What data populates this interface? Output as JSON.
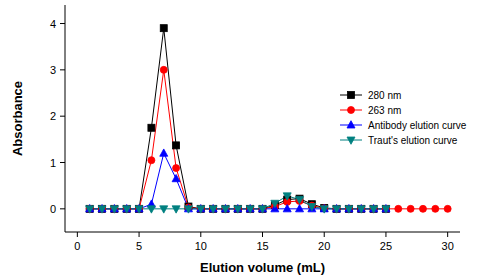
{
  "chart_data": {
    "type": "line",
    "x_label": "Elution volume (mL)",
    "y_label": "Absorbance",
    "x": [
      1,
      2,
      3,
      4,
      5,
      6,
      7,
      8,
      9,
      10,
      11,
      12,
      13,
      14,
      15,
      16,
      17,
      18,
      19,
      20,
      21,
      22,
      23,
      24,
      25,
      26,
      27,
      28,
      29,
      30
    ],
    "series": [
      {
        "name": "280 nm",
        "color": "#000000",
        "marker": "square",
        "values": [
          0,
          0,
          0,
          0,
          0,
          1.75,
          3.9,
          1.37,
          0.05,
          0,
          0,
          0,
          0,
          0,
          0,
          0.08,
          0.2,
          0.22,
          0.1,
          0.02,
          0,
          0,
          0,
          0,
          0,
          null,
          null,
          null,
          null,
          null
        ]
      },
      {
        "name": "263 nm",
        "color": "#ff0000",
        "marker": "circle",
        "values": [
          0,
          0,
          0,
          0,
          0,
          1.05,
          3.0,
          0.88,
          0.03,
          0,
          0,
          0,
          0,
          0,
          0,
          0.05,
          0.15,
          0.17,
          0.07,
          0.01,
          0,
          0,
          0,
          0,
          0,
          0,
          0,
          0,
          0,
          0
        ]
      },
      {
        "name": "Antibody elution curve",
        "color": "#0000ff",
        "marker": "triangle-up",
        "values": [
          0,
          0,
          0,
          0,
          0,
          0.1,
          1.2,
          0.65,
          0,
          0,
          0,
          0,
          0,
          0,
          0,
          0,
          0,
          0,
          0,
          0,
          0,
          0,
          0,
          0,
          0,
          null,
          null,
          null,
          null,
          null
        ]
      },
      {
        "name": "Traut's elution curve",
        "color": "#008080",
        "marker": "triangle-down",
        "values": [
          0,
          0,
          0,
          0,
          0,
          0,
          0,
          0,
          0,
          0,
          0,
          0,
          0,
          0,
          0,
          0.12,
          0.28,
          0.2,
          0.05,
          0,
          0,
          0,
          0,
          0,
          0,
          null,
          null,
          null,
          null,
          null
        ]
      }
    ],
    "xlim": [
      -1,
      31
    ],
    "xticks": [
      0,
      5,
      10,
      15,
      20,
      25,
      30
    ],
    "ylim": [
      -0.5,
      4.4
    ],
    "yticks": [
      0,
      1,
      2,
      3,
      4
    ],
    "legend": "upper-right",
    "grid": false
  }
}
